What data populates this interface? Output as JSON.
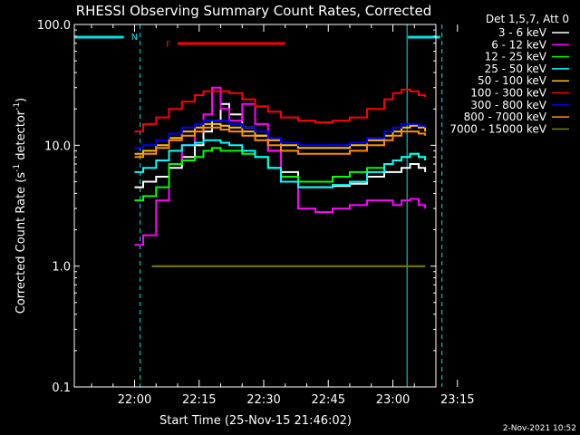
{
  "chart_data": {
    "type": "line",
    "title": "RHESSI Observing Summary Count Rates, Corrected",
    "xlabel": "Start Time (25-Nov-15 21:46:02)",
    "ylabel": "Corrected Count Rate (s⁻¹ detector⁻¹)",
    "ylabel_main": "Corrected Count Rate (s",
    "ylabel_exp1": "-1",
    "ylabel_mid": " detector",
    "ylabel_exp2": "-1",
    "ylabel_end": ")",
    "yscale": "log",
    "ylim": [
      0.1,
      100
    ],
    "xlim_minutes": [
      -14,
      70
    ],
    "x_unit": "minutes after 22:00",
    "x_ticks": [
      {
        "label": "22:00",
        "value": 0
      },
      {
        "label": "22:15",
        "value": 15
      },
      {
        "label": "22:30",
        "value": 30
      },
      {
        "label": "22:45",
        "value": 45
      },
      {
        "label": "23:00",
        "value": 60
      },
      {
        "label": "23:15",
        "value": 75
      }
    ],
    "y_ticks": [
      {
        "label": "100.0",
        "value": 100
      },
      {
        "label": "10.0",
        "value": 10
      },
      {
        "label": "1.0",
        "value": 1
      },
      {
        "label": "0.1",
        "value": 0.1
      }
    ],
    "legend_header": "Det 1,5,7, Att 0",
    "legend_position": "top-right",
    "flags": {
      "night_label": "N",
      "flare_label": "F",
      "night_intervals": [
        [
          -14,
          -2.5
        ],
        [
          63.5,
          71
        ]
      ],
      "flare_interval": [
        10,
        35
      ],
      "night_color": "#00e5e5",
      "flare_color": "#ff0000"
    },
    "vertical_lines": [
      {
        "value": -14,
        "style": "solid"
      },
      {
        "value": 1.3,
        "style": "dashed"
      },
      {
        "value": 63.3,
        "style": "solid"
      },
      {
        "value": 71.4,
        "style": "dashed"
      }
    ],
    "series": [
      {
        "name": "3 - 6 keV",
        "color": "#ffffff",
        "x": [
          0,
          2,
          5,
          8,
          11,
          14,
          16,
          18,
          20,
          22,
          25,
          28,
          31,
          34,
          38,
          42,
          46,
          50,
          54,
          58,
          60,
          62,
          64,
          66,
          67.5
        ],
        "y": [
          4.5,
          5,
          5.5,
          6.5,
          8,
          10,
          13,
          16,
          22,
          18,
          14,
          12,
          9,
          6,
          4.5,
          4.5,
          4.6,
          4.8,
          5.5,
          6,
          6,
          6.5,
          7,
          6.5,
          6
        ]
      },
      {
        "name": "6 - 12 keV",
        "color": "#ff00ff",
        "x": [
          0,
          2,
          5,
          8,
          11,
          14,
          16,
          18,
          20,
          22,
          25,
          28,
          31,
          34,
          38,
          42,
          46,
          50,
          54,
          58,
          60,
          62,
          64,
          66,
          67.5
        ],
        "y": [
          1.5,
          1.8,
          3.5,
          7,
          10,
          13,
          18,
          30,
          20,
          16,
          22,
          15,
          9,
          5,
          3,
          2.8,
          3,
          3.2,
          3.5,
          3.5,
          3.2,
          3.5,
          3.6,
          3.2,
          3
        ]
      },
      {
        "name": "12 - 25 keV",
        "color": "#00ff00",
        "x": [
          0,
          2,
          5,
          8,
          11,
          14,
          16,
          18,
          20,
          22,
          25,
          28,
          31,
          34,
          38,
          42,
          46,
          50,
          54,
          58,
          60,
          62,
          64,
          66,
          67.5
        ],
        "y": [
          3.5,
          3.8,
          4.5,
          7,
          7.5,
          8,
          9,
          9.5,
          9,
          9,
          8.5,
          8,
          6.5,
          5.5,
          5,
          5,
          5.5,
          6,
          6.5,
          7,
          7.5,
          8,
          8.5,
          8,
          7.5
        ]
      },
      {
        "name": "25 - 50 keV",
        "color": "#00ffff",
        "x": [
          0,
          2,
          5,
          8,
          11,
          14,
          16,
          18,
          20,
          22,
          25,
          28,
          31,
          34,
          38,
          42,
          46,
          50,
          54,
          58,
          60,
          62,
          64,
          66,
          67.5
        ],
        "y": [
          6,
          6.5,
          7.5,
          9,
          10,
          10.5,
          11,
          11,
          10.5,
          10,
          9,
          8,
          6.5,
          5,
          4.5,
          4.5,
          4.7,
          5,
          6,
          7,
          7.5,
          8,
          8.5,
          8,
          7.5
        ]
      },
      {
        "name": "50 - 100 keV",
        "color": "#ffc000",
        "x": [
          0,
          2,
          5,
          8,
          11,
          14,
          16,
          18,
          20,
          22,
          25,
          28,
          31,
          34,
          38,
          42,
          46,
          50,
          54,
          58,
          60,
          62,
          64,
          66,
          67.5
        ],
        "y": [
          8.5,
          9,
          10,
          11.5,
          13,
          14,
          15,
          15,
          14.5,
          14,
          13,
          12,
          11,
          10,
          9.5,
          9.5,
          9.5,
          10,
          11,
          12,
          13,
          14,
          14.5,
          14,
          13
        ]
      },
      {
        "name": "100 - 300 keV",
        "color": "#ff0000",
        "x": [
          0,
          2,
          5,
          8,
          11,
          14,
          16,
          18,
          20,
          22,
          25,
          28,
          31,
          34,
          38,
          42,
          46,
          50,
          54,
          58,
          60,
          62,
          64,
          66,
          67.5
        ],
        "y": [
          13,
          15,
          17,
          20,
          23,
          26,
          28,
          28,
          28,
          27,
          24,
          21,
          19,
          17,
          16,
          15.5,
          16,
          17,
          20,
          24,
          27,
          29,
          28,
          26,
          25
        ]
      },
      {
        "name": "300 - 800 keV",
        "color": "#0000ff",
        "x": [
          0,
          2,
          5,
          8,
          11,
          14,
          16,
          18,
          20,
          22,
          25,
          28,
          31,
          34,
          38,
          42,
          46,
          50,
          54,
          58,
          60,
          62,
          64,
          66,
          67.5
        ],
        "y": [
          9.5,
          10,
          11,
          12.5,
          14,
          15,
          16,
          16,
          16,
          15,
          14,
          13,
          11.5,
          10.5,
          10,
          10,
          10,
          10.5,
          11.5,
          13,
          14,
          15,
          15,
          14.5,
          14
        ]
      },
      {
        "name": "800 - 7000 keV",
        "color": "#ff8c00",
        "x": [
          0,
          2,
          5,
          8,
          11,
          14,
          16,
          18,
          20,
          22,
          25,
          28,
          31,
          34,
          38,
          42,
          46,
          50,
          54,
          58,
          60,
          62,
          64,
          66,
          67.5
        ],
        "y": [
          8,
          8.5,
          9.5,
          11,
          12,
          13,
          14,
          14,
          13.5,
          13,
          12,
          11,
          10,
          9,
          8.5,
          8.5,
          8.5,
          9,
          10,
          11,
          12,
          13,
          13,
          12.5,
          12
        ]
      },
      {
        "name": "7000 - 15000 keV",
        "color": "#808000",
        "x": [
          4,
          8,
          12,
          16,
          20,
          24,
          28,
          32,
          36,
          40,
          44,
          48,
          52,
          56,
          60,
          64,
          67.5
        ],
        "y": [
          1,
          1,
          1,
          1,
          1,
          1,
          1,
          1,
          1,
          1,
          1,
          1,
          1,
          1,
          1,
          1,
          1
        ]
      }
    ],
    "footer_date": "2-Nov-2021 10:52"
  }
}
